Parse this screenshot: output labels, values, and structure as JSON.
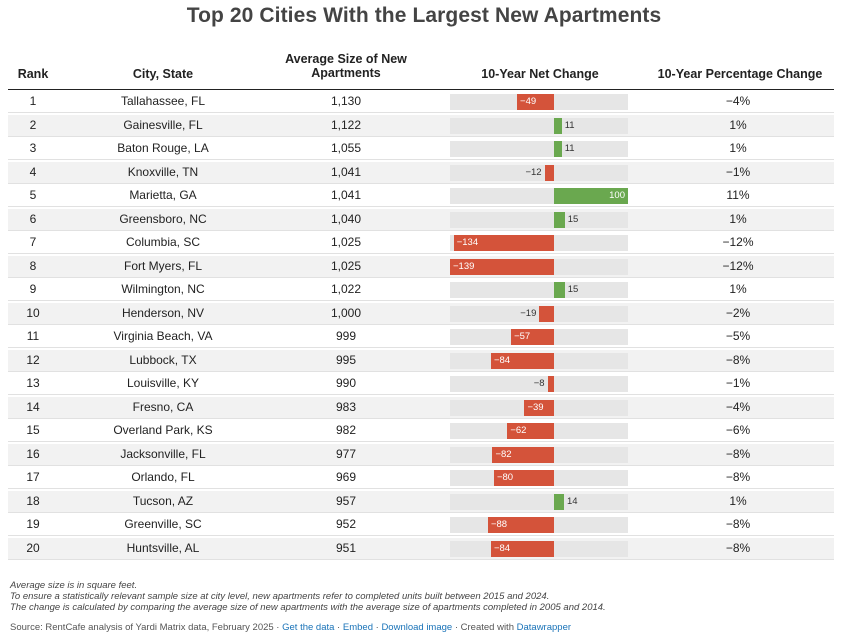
{
  "title": "Top 20 Cities With the Largest New Apartments",
  "headers": {
    "rank": "Rank",
    "city": "City, State",
    "size": "Average Size of New Apartments",
    "net": "10-Year Net Change",
    "pct": "10-Year Percentage Change"
  },
  "chart_data": {
    "type": "table",
    "title": "Top 20 Cities With the Largest New Apartments",
    "columns": [
      "Rank",
      "City, State",
      "Average Size of New Apartments",
      "10-Year Net Change",
      "10-Year Percentage Change"
    ],
    "bar_column": "10-Year Net Change",
    "bar_domain": [
      -139,
      100
    ],
    "rows": [
      {
        "rank": "1",
        "city": "Tallahassee, FL",
        "size": "1,130",
        "net": -49,
        "net_label": "−49",
        "pct": "−4%"
      },
      {
        "rank": "2",
        "city": "Gainesville, FL",
        "size": "1,122",
        "net": 11,
        "net_label": "11",
        "pct": "1%"
      },
      {
        "rank": "3",
        "city": "Baton Rouge, LA",
        "size": "1,055",
        "net": 11,
        "net_label": "11",
        "pct": "1%"
      },
      {
        "rank": "4",
        "city": "Knoxville, TN",
        "size": "1,041",
        "net": -12,
        "net_label": "−12",
        "pct": "−1%"
      },
      {
        "rank": "5",
        "city": "Marietta, GA",
        "size": "1,041",
        "net": 100,
        "net_label": "100",
        "pct": "11%"
      },
      {
        "rank": "6",
        "city": "Greensboro, NC",
        "size": "1,040",
        "net": 15,
        "net_label": "15",
        "pct": "1%"
      },
      {
        "rank": "7",
        "city": "Columbia, SC",
        "size": "1,025",
        "net": -134,
        "net_label": "−134",
        "pct": "−12%"
      },
      {
        "rank": "8",
        "city": "Fort Myers, FL",
        "size": "1,025",
        "net": -139,
        "net_label": "−139",
        "pct": "−12%"
      },
      {
        "rank": "9",
        "city": "Wilmington, NC",
        "size": "1,022",
        "net": 15,
        "net_label": "15",
        "pct": "1%"
      },
      {
        "rank": "10",
        "city": "Henderson, NV",
        "size": "1,000",
        "net": -19,
        "net_label": "−19",
        "pct": "−2%"
      },
      {
        "rank": "11",
        "city": "Virginia Beach, VA",
        "size": "999",
        "net": -57,
        "net_label": "−57",
        "pct": "−5%"
      },
      {
        "rank": "12",
        "city": "Lubbock, TX",
        "size": "995",
        "net": -84,
        "net_label": "−84",
        "pct": "−8%"
      },
      {
        "rank": "13",
        "city": "Louisville, KY",
        "size": "990",
        "net": -8,
        "net_label": "−8",
        "pct": "−1%"
      },
      {
        "rank": "14",
        "city": "Fresno, CA",
        "size": "983",
        "net": -39,
        "net_label": "−39",
        "pct": "−4%"
      },
      {
        "rank": "15",
        "city": "Overland Park, KS",
        "size": "982",
        "net": -62,
        "net_label": "−62",
        "pct": "−6%"
      },
      {
        "rank": "16",
        "city": "Jacksonville, FL",
        "size": "977",
        "net": -82,
        "net_label": "−82",
        "pct": "−8%"
      },
      {
        "rank": "17",
        "city": "Orlando, FL",
        "size": "969",
        "net": -80,
        "net_label": "−80",
        "pct": "−8%"
      },
      {
        "rank": "18",
        "city": "Tucson, AZ",
        "size": "957",
        "net": 14,
        "net_label": "14",
        "pct": "1%"
      },
      {
        "rank": "19",
        "city": "Greenville, SC",
        "size": "952",
        "net": -88,
        "net_label": "−88",
        "pct": "−8%"
      },
      {
        "rank": "20",
        "city": "Huntsville, AL",
        "size": "951",
        "net": -84,
        "net_label": "−84",
        "pct": "−8%"
      }
    ]
  },
  "colors": {
    "negative": "#d4533a",
    "positive": "#6aa84f",
    "track": "#e6e6e6",
    "stripe": "#f2f2f2"
  },
  "notes": [
    "Average size is in square feet.",
    "To ensure a statistically relevant sample size at city level, new apartments refer to completed units built between 2015 and 2024.",
    "The change is calculated by comparing the average size of new apartments with the average size of apartments completed in 2005 and 2014."
  ],
  "source": {
    "prefix": "Source: RentCafe analysis of Yardi Matrix data, February 2025 · ",
    "get_data": "Get the data",
    "sep1": " · ",
    "embed": "Embed",
    "sep2": " · ",
    "download": "Download image",
    "sep3": " · Created with ",
    "datawrapper": "Datawrapper"
  }
}
